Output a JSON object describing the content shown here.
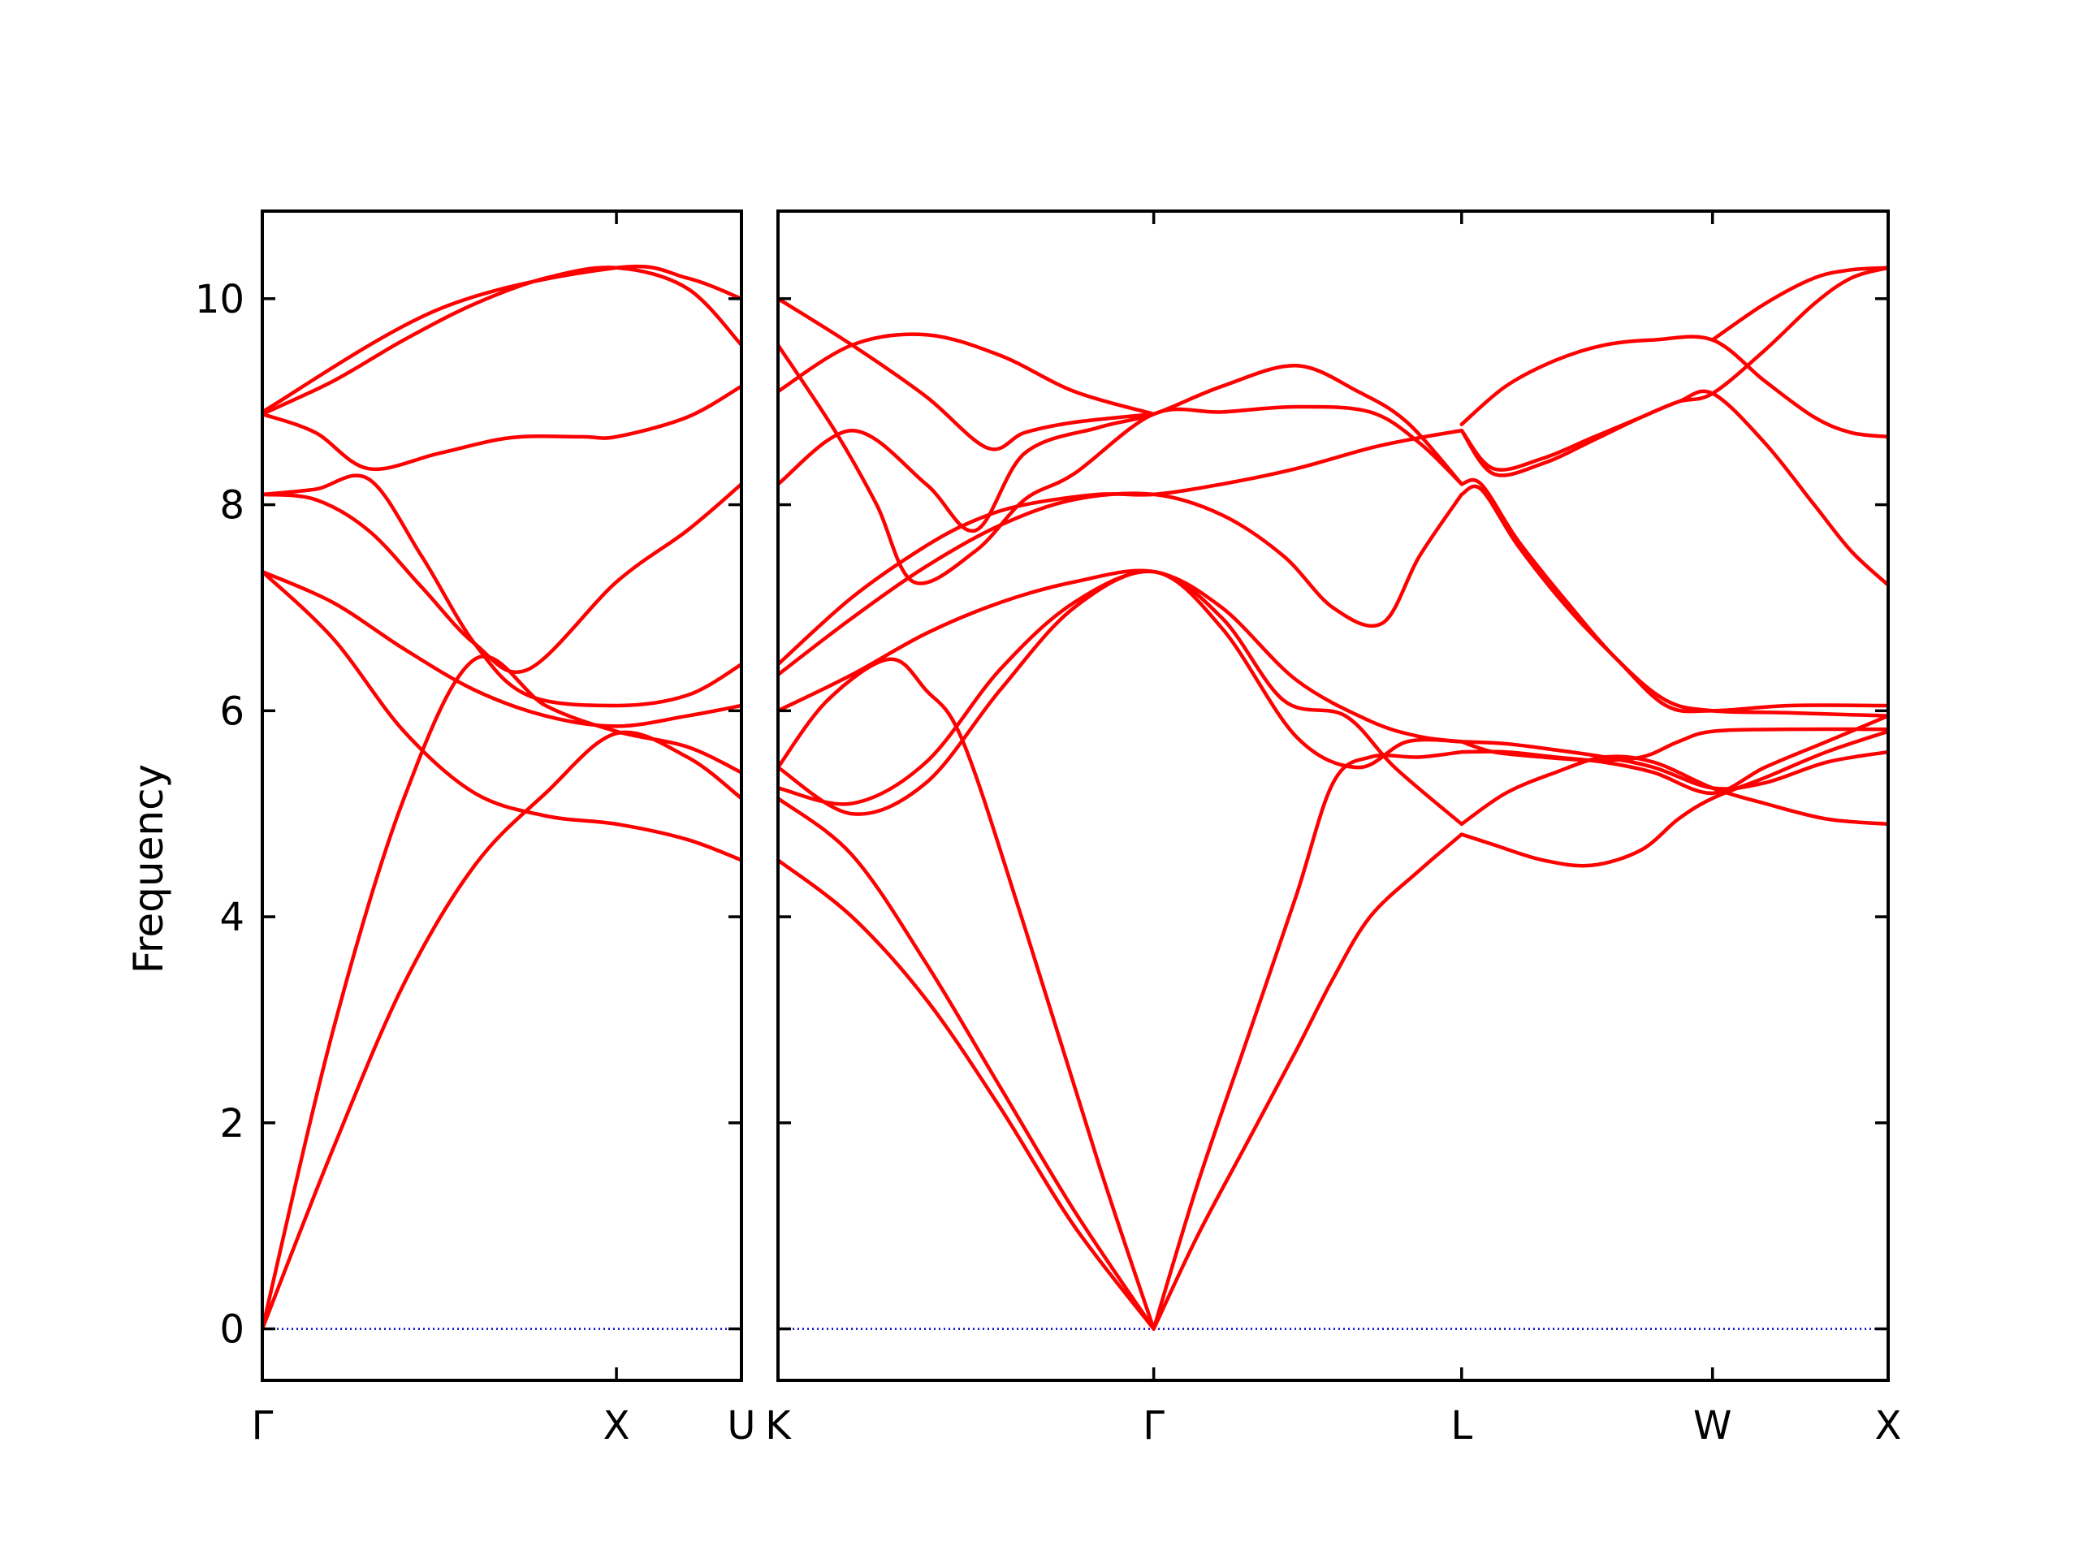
{
  "chart_data": {
    "type": "line",
    "title": "",
    "xlabel": "",
    "ylabel": "Frequency",
    "ylim": [
      -0.5,
      10.85
    ],
    "yticks": [
      0,
      2,
      4,
      6,
      8,
      10
    ],
    "grid": false,
    "legend": "none",
    "colors": {
      "bands": "#ff0000",
      "zero_line": "#0000cc",
      "axes": "#000000"
    },
    "panels": [
      {
        "xlim": [
          0,
          1.353
        ],
        "ticks": [
          {
            "pos": 0.0,
            "label": "Γ"
          },
          {
            "pos": 1.0,
            "label": "X"
          },
          {
            "pos": 1.353,
            "label": "U"
          }
        ],
        "series": [
          {
            "x": [
              0,
              0.2,
              0.4,
              0.6,
              0.8,
              1.0,
              1.2,
              1.353
            ],
            "y": [
              0,
              1.75,
              3.35,
              4.5,
              5.2,
              5.78,
              5.55,
              5.15
            ]
          },
          {
            "x": [
              0,
              0.2,
              0.4,
              0.6,
              0.8,
              1.0,
              1.2,
              1.353
            ],
            "y": [
              0,
              2.9,
              5.15,
              6.5,
              6.05,
              5.8,
              5.65,
              5.4
            ]
          },
          {
            "x": [
              0,
              0.2,
              0.4,
              0.6,
              0.8,
              1.0,
              1.2,
              1.353
            ],
            "y": [
              7.35,
              6.7,
              5.8,
              5.2,
              4.98,
              4.9,
              4.75,
              4.55
            ]
          },
          {
            "x": [
              0,
              0.2,
              0.4,
              0.6,
              0.8,
              1.0,
              1.2,
              1.353
            ],
            "y": [
              7.35,
              7.05,
              6.6,
              6.2,
              5.95,
              5.85,
              5.95,
              6.05
            ]
          },
          {
            "x": [
              0,
              0.15,
              0.3,
              0.45,
              0.6,
              0.75,
              1.0,
              1.2,
              1.353
            ],
            "y": [
              8.1,
              8.05,
              7.75,
              7.2,
              6.65,
              6.4,
              7.25,
              7.75,
              8.2
            ]
          },
          {
            "x": [
              0,
              0.15,
              0.3,
              0.45,
              0.6,
              0.75,
              1.0,
              1.2,
              1.353
            ],
            "y": [
              8.1,
              8.15,
              8.25,
              7.5,
              6.65,
              6.15,
              6.05,
              6.15,
              6.45
            ]
          },
          {
            "x": [
              0,
              0.15,
              0.3,
              0.5,
              0.7,
              0.9,
              1.0,
              1.2,
              1.353
            ],
            "y": [
              8.88,
              8.7,
              8.35,
              8.5,
              8.65,
              8.66,
              8.66,
              8.85,
              9.15
            ]
          },
          {
            "x": [
              0,
              0.2,
              0.4,
              0.6,
              0.8,
              1.0,
              1.2,
              1.353
            ],
            "y": [
              8.88,
              9.2,
              9.6,
              9.95,
              10.2,
              10.3,
              10.1,
              9.55
            ]
          },
          {
            "x": [
              0,
              0.5,
              1.0,
              1.2,
              1.353
            ],
            "y": [
              8.9,
              9.9,
              10.3,
              10.2,
              10.0
            ]
          }
        ],
        "zero_line": true
      },
      {
        "xlim": [
          0,
          4.5
        ],
        "ticks": [
          {
            "pos": 0.0,
            "label": "K"
          },
          {
            "pos": 1.523,
            "label": "Γ"
          },
          {
            "pos": 2.771,
            "label": "L"
          },
          {
            "pos": 3.788,
            "label": "W"
          },
          {
            "pos": 4.5,
            "label": "X"
          }
        ],
        "series": [
          {
            "x": [
              0,
              0.3,
              0.6,
              0.9,
              1.2,
              1.523
            ],
            "y": [
              4.55,
              4.0,
              3.2,
              2.15,
              1.0,
              0
            ]
          },
          {
            "x": [
              0,
              0.3,
              0.6,
              0.9,
              1.2,
              1.523
            ],
            "y": [
              5.15,
              4.6,
              3.55,
              2.35,
              1.15,
              0
            ]
          },
          {
            "x": [
              0,
              0.2,
              0.45,
              0.6,
              0.75,
              1.0,
              1.3,
              1.523
            ],
            "y": [
              5.45,
              6.1,
              6.5,
              6.2,
              5.7,
              3.9,
              1.6,
              0
            ]
          },
          {
            "x": [
              1.523,
              1.7,
              1.9,
              2.1,
              2.25,
              2.4,
              2.6,
              2.771
            ],
            "y": [
              0,
              1.4,
              2.8,
              4.2,
              5.3,
              5.55,
              5.55,
              5.6
            ]
          },
          {
            "x": [
              1.523,
              1.7,
              1.9,
              2.1,
              2.25,
              2.4,
              2.6,
              2.771
            ],
            "y": [
              0,
              0.9,
              1.8,
              2.7,
              3.4,
              4.0,
              4.45,
              4.8
            ]
          },
          {
            "x": [
              0,
              0.3,
              0.6,
              0.9,
              1.2,
              1.523,
              1.8,
              2.1,
              2.35,
              2.55,
              2.771
            ],
            "y": [
              5.45,
              5.0,
              5.3,
              6.2,
              7.0,
              7.35,
              6.8,
              5.75,
              5.45,
              5.7,
              5.7
            ]
          },
          {
            "x": [
              0,
              0.3,
              0.6,
              0.9,
              1.2,
              1.523,
              1.8,
              2.05,
              2.3,
              2.5,
              2.771
            ],
            "y": [
              5.25,
              5.1,
              5.5,
              6.4,
              7.05,
              7.35,
              6.9,
              6.1,
              5.95,
              5.45,
              4.9
            ]
          },
          {
            "x": [
              0,
              0.3,
              0.6,
              0.9,
              1.2,
              1.523,
              1.8,
              2.1,
              2.4,
              2.6,
              2.771
            ],
            "y": [
              6.0,
              6.35,
              6.75,
              7.05,
              7.25,
              7.35,
              7.0,
              6.3,
              5.9,
              5.75,
              5.7
            ]
          },
          {
            "x": [
              0,
              0.3,
              0.6,
              0.8,
              1.0,
              1.3,
              1.523,
              1.8,
              2.1,
              2.4,
              2.6,
              2.771
            ],
            "y": [
              6.45,
              7.1,
              7.6,
              7.85,
              8.0,
              8.1,
              8.1,
              8.2,
              8.35,
              8.55,
              8.65,
              8.72
            ]
          },
          {
            "x": [
              0,
              0.3,
              0.6,
              0.9,
              1.2,
              1.523,
              1.8,
              2.05,
              2.25,
              2.45,
              2.6,
              2.771
            ],
            "y": [
              6.35,
              6.9,
              7.4,
              7.8,
              8.05,
              8.1,
              7.9,
              7.5,
              7.0,
              6.85,
              7.5,
              8.1
            ]
          },
          {
            "x": [
              0,
              0.23,
              0.4,
              0.55,
              0.8,
              1.0,
              1.2,
              1.523,
              1.8,
              2.1,
              2.4,
              2.6,
              2.771
            ],
            "y": [
              9.55,
              8.72,
              8.0,
              7.25,
              7.55,
              8.05,
              8.3,
              8.88,
              8.9,
              8.95,
              8.9,
              8.6,
              8.2
            ]
          },
          {
            "x": [
              0,
              0.3,
              0.6,
              0.8,
              1.0,
              1.3,
              1.523,
              1.8,
              2.1,
              2.35,
              2.55,
              2.771
            ],
            "y": [
              8.2,
              8.72,
              8.2,
              7.75,
              8.5,
              8.75,
              8.88,
              9.15,
              9.35,
              9.1,
              8.8,
              8.2
            ]
          },
          {
            "x": [
              0,
              0.3,
              0.6,
              0.9,
              1.2,
              1.523
            ],
            "y": [
              9.1,
              9.55,
              9.65,
              9.45,
              9.1,
              8.88
            ]
          },
          {
            "x": [
              0,
              0.3,
              0.6,
              0.85,
              1.0,
              1.2,
              1.523
            ],
            "y": [
              10.0,
              9.55,
              9.05,
              8.55,
              8.7,
              8.8,
              8.88
            ]
          },
          {
            "x": [
              2.771,
              2.9,
              3.1,
              3.3,
              3.5,
              3.65,
              3.788,
              4.0,
              4.25,
              4.5
            ],
            "y": [
              4.8,
              4.7,
              4.55,
              4.5,
              4.65,
              4.95,
              5.15,
              5.35,
              5.6,
              5.8
            ]
          },
          {
            "x": [
              2.771,
              2.95,
              3.15,
              3.35,
              3.55,
              3.788,
              4.0,
              4.25,
              4.5
            ],
            "y": [
              4.9,
              5.2,
              5.4,
              5.55,
              5.5,
              5.25,
              5.1,
              4.95,
              4.9
            ]
          },
          {
            "x": [
              2.771,
              2.95,
              3.15,
              3.35,
              3.55,
              3.788,
              4.0,
              4.25,
              4.5
            ],
            "y": [
              5.6,
              5.6,
              5.55,
              5.5,
              5.4,
              5.2,
              5.45,
              5.7,
              5.95
            ]
          },
          {
            "x": [
              2.771,
              2.95,
              3.15,
              3.35,
              3.55,
              3.788,
              4.0,
              4.25,
              4.5
            ],
            "y": [
              5.7,
              5.68,
              5.62,
              5.55,
              5.45,
              5.25,
              5.3,
              5.5,
              5.6
            ]
          },
          {
            "x": [
              2.771,
              2.9,
              3.1,
              3.3,
              3.5,
              3.65,
              3.788,
              4.1,
              4.5
            ],
            "y": [
              5.7,
              5.6,
              5.55,
              5.52,
              5.55,
              5.7,
              5.8,
              5.82,
              5.82
            ]
          },
          {
            "x": [
              2.771,
              2.85,
              3.0,
              3.2,
              3.4,
              3.6,
              3.788,
              4.1,
              4.5
            ],
            "y": [
              8.1,
              8.15,
              7.6,
              7.0,
              6.5,
              6.05,
              6.0,
              6.05,
              6.05
            ]
          },
          {
            "x": [
              2.771,
              2.85,
              3.0,
              3.2,
              3.4,
              3.6,
              3.788,
              4.1,
              4.5
            ],
            "y": [
              8.2,
              8.2,
              7.65,
              7.05,
              6.5,
              6.1,
              6.0,
              5.98,
              5.95
            ]
          },
          {
            "x": [
              2.771,
              2.9,
              3.1,
              3.3,
              3.5,
              3.65,
              3.788,
              4.0,
              4.2,
              4.35,
              4.5
            ],
            "y": [
              8.72,
              8.35,
              8.45,
              8.65,
              8.85,
              9.0,
              9.08,
              8.6,
              8.0,
              7.55,
              7.22
            ]
          },
          {
            "x": [
              2.771,
              2.9,
              3.1,
              3.3,
              3.5,
              3.65,
              3.788,
              4.0,
              4.2,
              4.35,
              4.5
            ],
            "y": [
              8.72,
              8.3,
              8.4,
              8.62,
              8.85,
              9.0,
              9.08,
              9.5,
              9.95,
              10.2,
              10.3
            ]
          },
          {
            "x": [
              2.771,
              2.95,
              3.15,
              3.35,
              3.55,
              3.788,
              4.0,
              4.2,
              4.35,
              4.5
            ],
            "y": [
              8.78,
              9.15,
              9.4,
              9.55,
              9.6,
              9.6,
              9.2,
              8.85,
              8.7,
              8.66
            ]
          },
          {
            "x": [
              3.788,
              4.0,
              4.2,
              4.35,
              4.5
            ],
            "y": [
              9.6,
              9.95,
              10.2,
              10.28,
              10.3
            ]
          }
        ],
        "zero_line": true
      }
    ]
  }
}
